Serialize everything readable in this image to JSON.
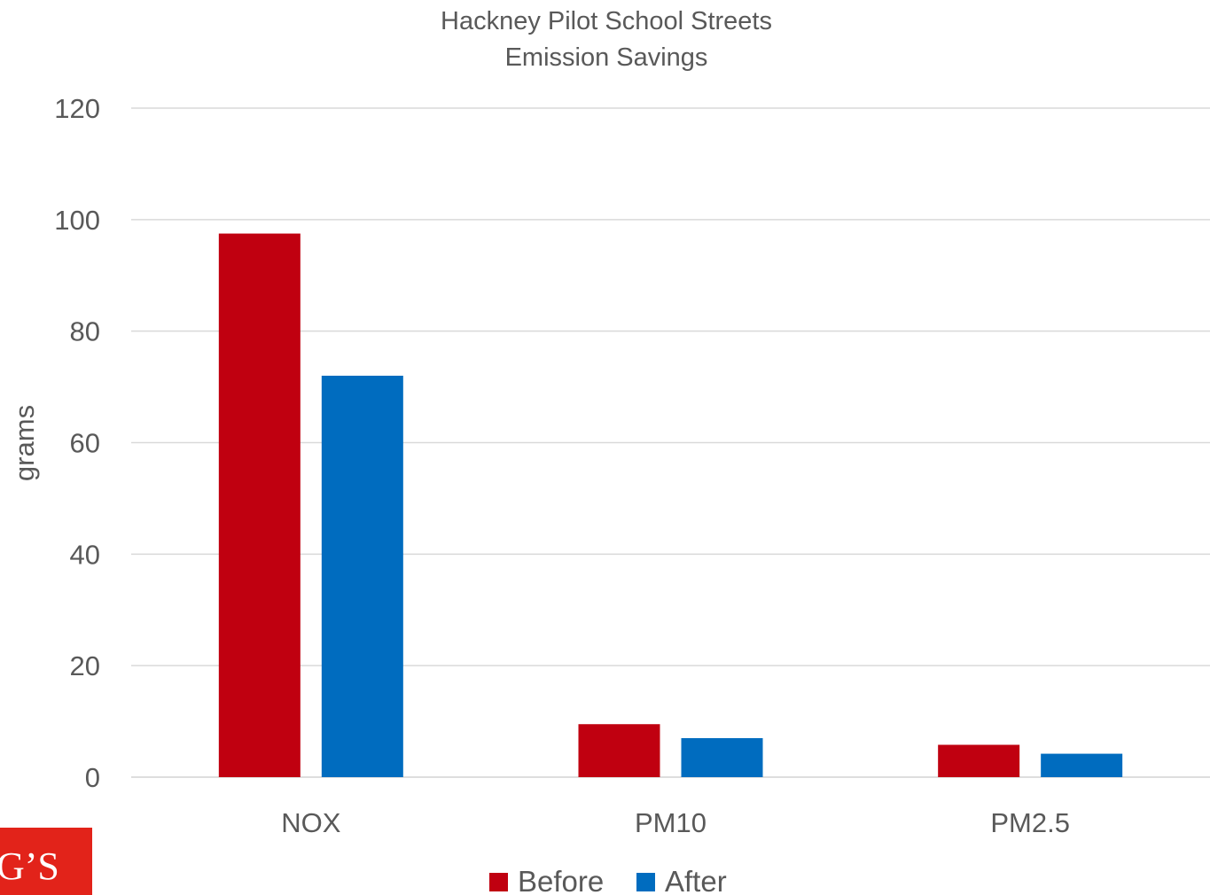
{
  "chart_data": {
    "type": "bar",
    "title_lines": [
      "Hackney Pilot School Streets",
      "Emission Savings"
    ],
    "ylabel": "grams",
    "xlabel": "",
    "ylim": [
      0,
      120
    ],
    "yticks": [
      0,
      20,
      40,
      60,
      80,
      100,
      120
    ],
    "grid": true,
    "legend_position": "bottom-center",
    "categories": [
      "NOX",
      "PM10",
      "PM2.5"
    ],
    "series": [
      {
        "name": "Before",
        "color": "#c00010",
        "values": [
          97.5,
          9.5,
          5.8
        ]
      },
      {
        "name": "After",
        "color": "#006cbf",
        "values": [
          72,
          7,
          4.2
        ]
      }
    ]
  },
  "logo": {
    "text": "G’S",
    "color": "#e2231a"
  }
}
